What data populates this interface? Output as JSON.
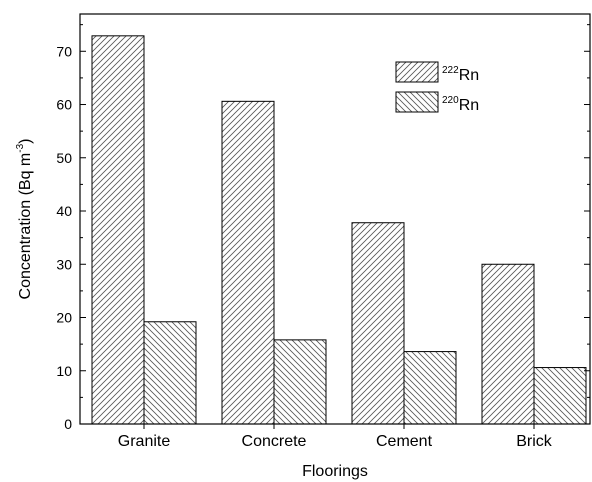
{
  "chart_data": {
    "type": "bar",
    "title": "",
    "xlabel": "Floorings",
    "ylabel": "Concentration (Bq m",
    "ylabel_sup": "-3",
    "ylabel_close": ")",
    "categories": [
      "Granite",
      "Concrete",
      "Cement",
      "Brick"
    ],
    "series": [
      {
        "name": "Rn",
        "superscript": "222",
        "pattern": "hatch-forward",
        "values": [
          72.9,
          60.6,
          37.8,
          30.0
        ]
      },
      {
        "name": "Rn",
        "superscript": "220",
        "pattern": "hatch-backward",
        "values": [
          19.2,
          15.8,
          13.6,
          10.6
        ]
      }
    ],
    "ylim": [
      0,
      77
    ],
    "yticks": [
      0,
      10,
      20,
      30,
      40,
      50,
      60,
      70
    ],
    "grid": false,
    "legend_position": "top-right",
    "colors": {
      "axis": "#000000",
      "bar_fill": "#ffffff",
      "hatch": "#555555"
    }
  }
}
